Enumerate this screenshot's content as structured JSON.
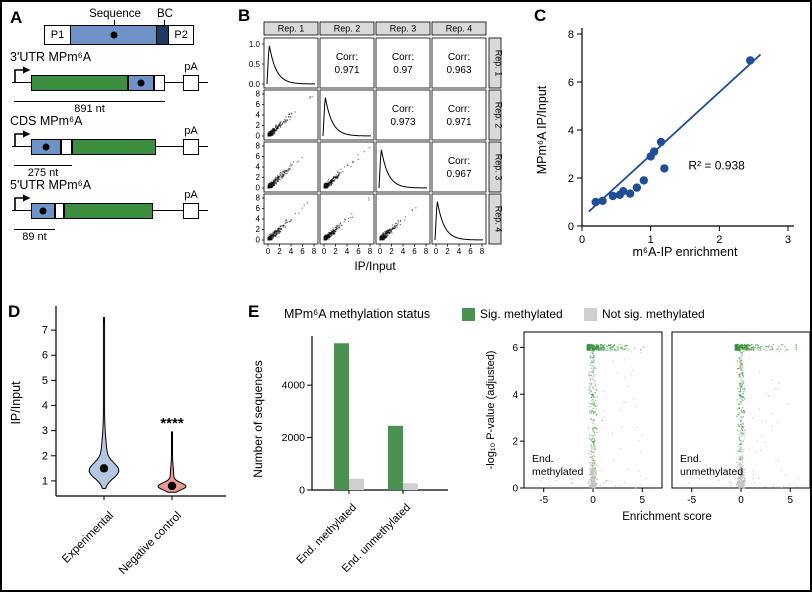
{
  "colors": {
    "construct_blue": "#6e93c8",
    "construct_navy": "#1e3a63",
    "green": "#3e8e41",
    "scatter_blue": "#1f4e96",
    "violin_blue": "#b3c8de",
    "violin_red": "#e79b92",
    "sig_green": "#4a9152",
    "nonsig_gray": "#cfcfcf",
    "panel_header_gray": "#d9d9d9"
  },
  "panel_a": {
    "letter": "A",
    "construct": {
      "sequence_label": "Sequence",
      "bc_label": "BC",
      "p1": "P1",
      "p2": "P2"
    },
    "rows": [
      {
        "label": "3'UTR MPm⁶A",
        "pa": "pA",
        "nt": "891 nt"
      },
      {
        "label": "CDS MPm⁶A",
        "pa": "pA",
        "nt": "275 nt"
      },
      {
        "label": "5'UTR MPm⁶A",
        "pa": "pA",
        "nt": "89 nt"
      }
    ]
  },
  "panel_b": {
    "letter": "B"
  },
  "panel_c": {
    "letter": "C"
  },
  "panel_d": {
    "letter": "D"
  },
  "panel_e": {
    "letter": "E",
    "legend": {
      "title": "MPm⁶A methylation status",
      "sig": "Sig. methylated",
      "notsig": "Not sig. methylated"
    }
  },
  "chart_data": [
    {
      "id": "panel_b_matrix",
      "type": "scatter",
      "title": "Replicate pairwise correlations of IP/Input",
      "xlabel": "IP/Input",
      "replicates": [
        "Rep. 1",
        "Rep. 2",
        "Rep. 3",
        "Rep. 4"
      ],
      "corr_label": "Corr:",
      "matrix": [
        [
          null,
          "0.971",
          "0.97",
          "0.963"
        ],
        [
          null,
          null,
          "0.973",
          "0.971"
        ],
        [
          null,
          null,
          null,
          "0.967"
        ],
        [
          null,
          null,
          null,
          null
        ]
      ],
      "x_ticks": [
        0,
        2,
        4,
        6,
        8
      ],
      "density_y_ticks": [
        "1.0",
        "0.5",
        "0.0"
      ],
      "scatter_y_ticks": [
        0,
        2,
        4,
        6,
        8
      ],
      "axis_range": [
        0,
        8
      ]
    },
    {
      "id": "panel_c_fit",
      "type": "scatter",
      "xlabel": "m⁶A-IP enrichment",
      "ylabel": "MPm⁶A IP/Input",
      "r_squared_label": "R² = 0.938",
      "xlim": [
        0,
        3
      ],
      "ylim": [
        0,
        8
      ],
      "x_ticks": [
        0,
        1,
        2,
        3
      ],
      "y_ticks": [
        0,
        2,
        4,
        6,
        8
      ],
      "points": [
        [
          0.2,
          1.0
        ],
        [
          0.3,
          1.05
        ],
        [
          0.45,
          1.25
        ],
        [
          0.55,
          1.3
        ],
        [
          0.6,
          1.45
        ],
        [
          0.7,
          1.35
        ],
        [
          0.8,
          1.6
        ],
        [
          0.9,
          1.9
        ],
        [
          1.0,
          2.9
        ],
        [
          1.05,
          3.1
        ],
        [
          1.15,
          3.5
        ],
        [
          1.2,
          2.4
        ],
        [
          2.45,
          6.9
        ]
      ],
      "fit_line": {
        "x": [
          0.1,
          2.6
        ],
        "y": [
          0.6,
          7.15
        ]
      },
      "color": "#1f4e96"
    },
    {
      "id": "panel_d_violin",
      "type": "area",
      "subtype": "violin",
      "ylabel": "IP/Input",
      "y_ticks": [
        1,
        2,
        3,
        4,
        5,
        6,
        7
      ],
      "ylim": [
        0.4,
        7.8
      ],
      "categories": [
        "Experimental",
        "Negative control"
      ],
      "medians": [
        1.5,
        0.8
      ],
      "ranges": [
        [
          0.7,
          7.5
        ],
        [
          0.55,
          2.95
        ]
      ],
      "significance": "****",
      "colors": [
        "#b3c8de",
        "#e79b92"
      ]
    },
    {
      "id": "panel_e_bar",
      "type": "bar",
      "ylabel": "Number of sequences",
      "categories": [
        "End. methylated",
        "End. unmethylated"
      ],
      "series": [
        {
          "name": "Sig. methylated",
          "color": "#4a9152",
          "values": [
            5600,
            2450
          ]
        },
        {
          "name": "Not sig. methylated",
          "color": "#cfcfcf",
          "values": [
            430,
            260
          ]
        }
      ],
      "y_ticks": [
        0,
        2000,
        4000
      ],
      "ylim": [
        0,
        5800
      ]
    },
    {
      "id": "panel_e_volcano",
      "type": "scatter",
      "subtype": "volcano",
      "xlabel": "Enrichment score",
      "ylabel": "-log₁₀ P-value (adjusted)",
      "panels": [
        {
          "label_line1": "End.",
          "label_line2": "methylated"
        },
        {
          "label_line1": "End.",
          "label_line2": "unmethylated"
        }
      ],
      "x_ticks": [
        -5,
        0,
        5
      ],
      "y_ticks": [
        0,
        2,
        4,
        6
      ],
      "xlim": [
        -7,
        7
      ],
      "ylim": [
        0,
        6.4
      ],
      "cap_value": 6,
      "point_colors": {
        "sig": "#3f9142",
        "notsig": "#c2c2c2"
      }
    }
  ]
}
